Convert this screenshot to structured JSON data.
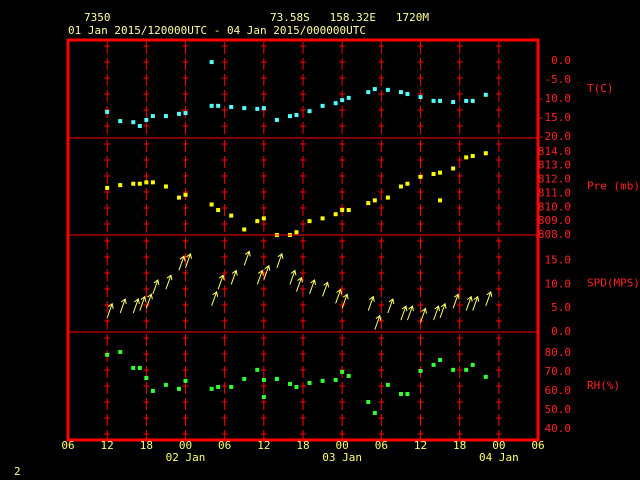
{
  "header": {
    "station": "7350",
    "location": "73.58S   158.32E   1720M",
    "period": "01 Jan 2015/120000UTC - 04 Jan 2015/000000UTC",
    "page": "2"
  },
  "chart_data": [
    {
      "type": "scatter",
      "ylabel": "T(C)",
      "color": "#55ffff",
      "xlim": [
        6,
        78
      ],
      "ylim": [
        -20.25,
        5.5
      ],
      "yticks": [
        {
          "value": 0,
          "label": "0.0"
        },
        {
          "value": -5,
          "label": "-5.0"
        },
        {
          "value": -10,
          "label": "-10.0"
        },
        {
          "value": -15,
          "label": "-15.0"
        },
        {
          "value": -20,
          "label": "-20.0"
        }
      ],
      "x": [
        12,
        14,
        16,
        17,
        18,
        19,
        21,
        23,
        24,
        28,
        28,
        29,
        31,
        33,
        35,
        36,
        38,
        40,
        41,
        43,
        45,
        47,
        48,
        49,
        52,
        53,
        55,
        57,
        58,
        60,
        62,
        63,
        65,
        67,
        68,
        70
      ],
      "values": [
        -13.4,
        -15.8,
        -16.1,
        -17.1,
        -15.5,
        -14.5,
        -14.5,
        -13.9,
        -13.7,
        -0.3,
        -11.8,
        -11.8,
        -12.1,
        -12.4,
        -12.6,
        -12.4,
        -15.5,
        -14.5,
        -14.2,
        -13.2,
        -11.8,
        -11.1,
        -10.3,
        -9.7,
        -8.2,
        -7.4,
        -7.6,
        -8.2,
        -8.7,
        -9.5,
        -10.5,
        -10.5,
        -10.8,
        -10.5,
        -10.5,
        -8.9
      ]
    },
    {
      "type": "scatter",
      "ylabel": "Pre (mb)",
      "color": "#ffff00",
      "xlim": [
        6,
        78
      ],
      "ylim": [
        808,
        815
      ],
      "yticks": [
        {
          "value": 814,
          "label": "814.0"
        },
        {
          "value": 813,
          "label": "813.0"
        },
        {
          "value": 812,
          "label": "812.0"
        },
        {
          "value": 811,
          "label": "811.0"
        },
        {
          "value": 810,
          "label": "810.0"
        },
        {
          "value": 809,
          "label": "809.0"
        },
        {
          "value": 808,
          "label": "808.0"
        }
      ],
      "x": [
        12,
        14,
        16,
        17,
        18,
        19,
        21,
        23,
        24,
        28,
        29,
        31,
        33,
        35,
        36,
        38,
        40,
        41,
        43,
        45,
        47,
        48,
        49,
        52,
        53,
        55,
        57,
        58,
        60,
        62,
        63,
        63,
        65,
        67,
        68,
        70
      ],
      "values": [
        811.4,
        811.6,
        811.7,
        811.7,
        811.8,
        811.8,
        811.5,
        810.7,
        810.9,
        810.2,
        809.8,
        809.4,
        808.4,
        809.0,
        809.2,
        808.0,
        808.0,
        808.2,
        809.0,
        809.2,
        809.5,
        809.8,
        809.8,
        810.3,
        810.5,
        810.7,
        811.5,
        811.7,
        812.2,
        812.4,
        810.5,
        812.5,
        812.8,
        813.6,
        813.7,
        813.9
      ]
    },
    {
      "type": "arrow",
      "ylabel": "SPD(MPS)",
      "color": "#ffff66",
      "xlim": [
        6,
        78
      ],
      "ylim": [
        0,
        20.4
      ],
      "yticks": [
        {
          "value": 15,
          "label": "15.0"
        },
        {
          "value": 10,
          "label": "10.0"
        },
        {
          "value": 5,
          "label": "5.0"
        },
        {
          "value": 0,
          "label": "0.0"
        }
      ],
      "x": [
        12,
        14,
        16,
        17,
        18,
        19,
        21,
        23,
        24,
        28,
        29,
        31,
        33,
        35,
        36,
        38,
        40,
        41,
        43,
        45,
        47,
        48,
        52,
        53,
        55,
        57,
        58,
        60,
        62,
        63,
        65,
        67,
        68,
        70
      ],
      "values": [
        3,
        4,
        4,
        4.5,
        5,
        8,
        9,
        13,
        13.5,
        5.5,
        9,
        10,
        14,
        10,
        11,
        13.5,
        10,
        8.5,
        8,
        7.5,
        6,
        5,
        4.5,
        0.5,
        4,
        2.5,
        2.5,
        2,
        2.5,
        3,
        5,
        4.5,
        4.5,
        5.5
      ]
    },
    {
      "type": "scatter",
      "ylabel": "RH(%)",
      "color": "#33ff33",
      "xlim": [
        6,
        78
      ],
      "ylim": [
        34.2,
        91
      ],
      "yticks": [
        {
          "value": 80,
          "label": "80.0"
        },
        {
          "value": 70,
          "label": "70.0"
        },
        {
          "value": 60,
          "label": "60.0"
        },
        {
          "value": 50,
          "label": "50.0"
        },
        {
          "value": 40,
          "label": "40.0"
        }
      ],
      "x": [
        12,
        14,
        16,
        17,
        18,
        19,
        21,
        23,
        24,
        28,
        29,
        31,
        33,
        35,
        36,
        36,
        38,
        40,
        41,
        43,
        45,
        47,
        48,
        49,
        52,
        53,
        55,
        57,
        58,
        60,
        62,
        63,
        65,
        67,
        68,
        70
      ],
      "values": [
        79.0,
        80.5,
        72.1,
        72.1,
        66.8,
        60.0,
        63.2,
        61.1,
        65.3,
        61.1,
        62.1,
        62.1,
        66.3,
        71.1,
        65.8,
        56.8,
        66.3,
        63.7,
        62.1,
        64.2,
        65.3,
        65.8,
        70.0,
        67.9,
        54.2,
        48.4,
        63.2,
        58.4,
        58.4,
        70.5,
        73.7,
        76.3,
        71.1,
        71.1,
        73.7,
        67.4
      ],
      "xticks": [
        {
          "value": 6,
          "label": "06"
        },
        {
          "value": 12,
          "label": "12"
        },
        {
          "value": 18,
          "label": "18"
        },
        {
          "value": 24,
          "label": "00"
        },
        {
          "value": 30,
          "label": "06"
        },
        {
          "value": 36,
          "label": "12"
        },
        {
          "value": 42,
          "label": "18"
        },
        {
          "value": 48,
          "label": "00"
        },
        {
          "value": 54,
          "label": "06"
        },
        {
          "value": 60,
          "label": "12"
        },
        {
          "value": 66,
          "label": "18"
        },
        {
          "value": 72,
          "label": "00"
        },
        {
          "value": 78,
          "label": "06"
        }
      ],
      "xdate_labels": [
        {
          "value": 24,
          "label": "02 Jan"
        },
        {
          "value": 48,
          "label": "03 Jan"
        },
        {
          "value": 72,
          "label": "04 Jan"
        }
      ],
      "grid": true
    }
  ]
}
